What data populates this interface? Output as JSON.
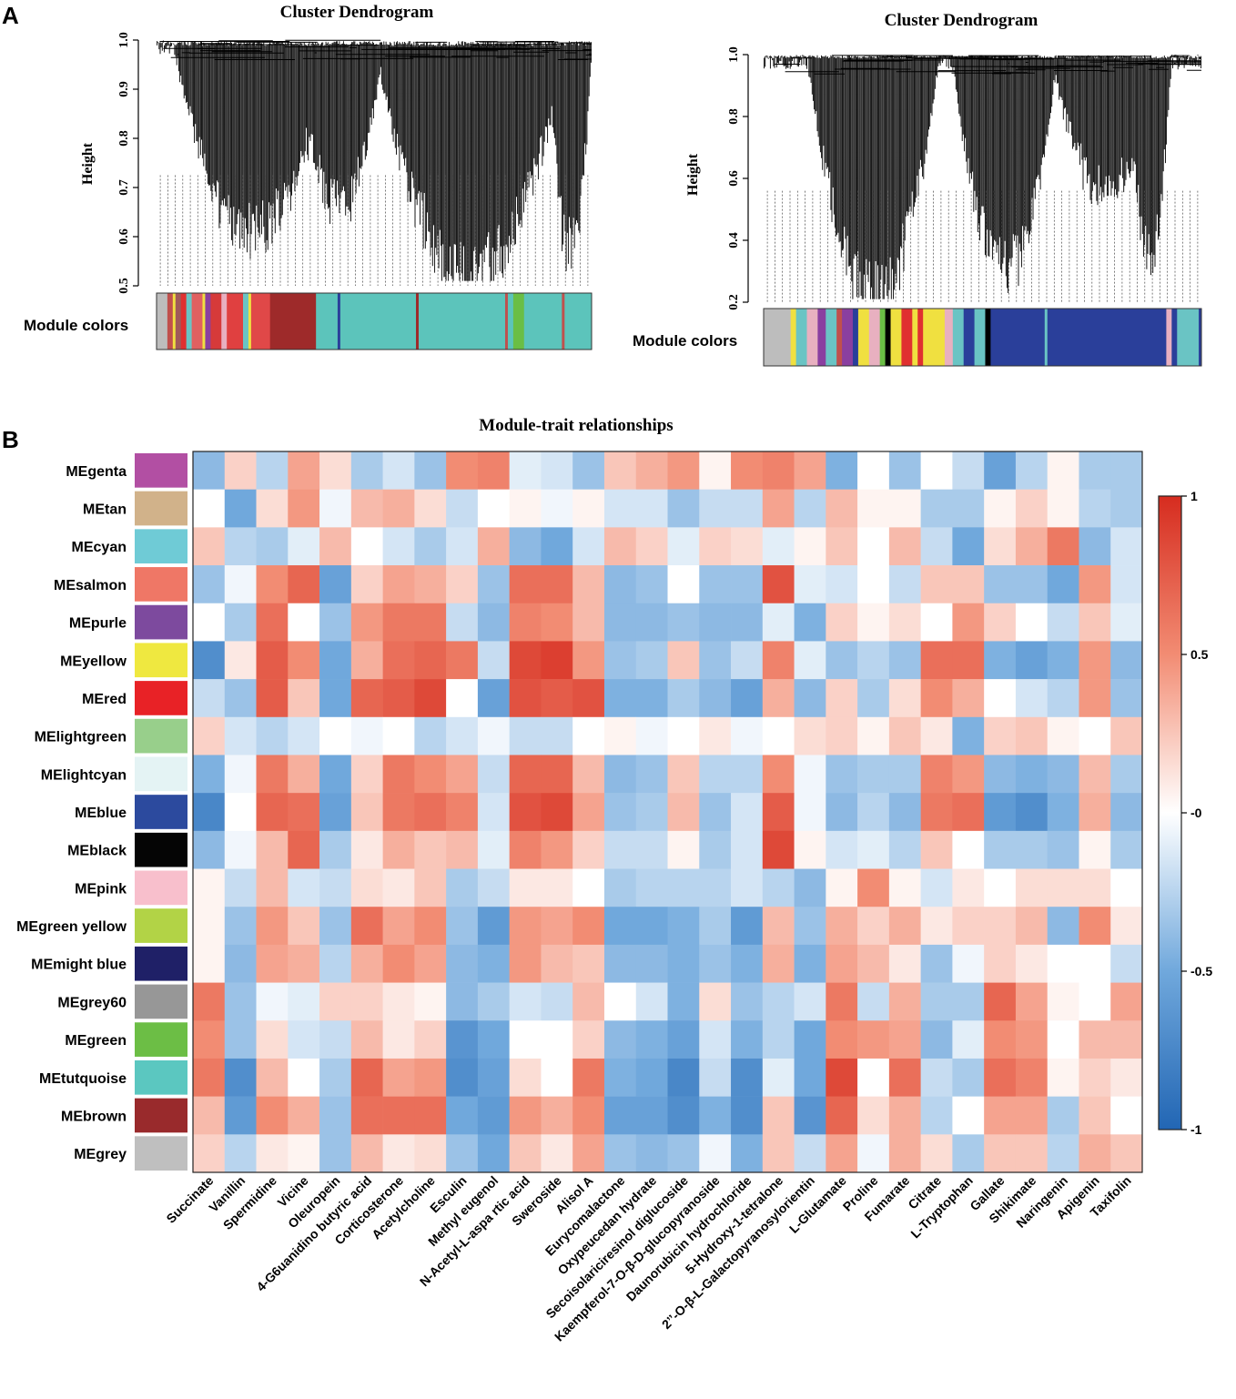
{
  "panels": {
    "a_label": "A",
    "b_label": "B"
  },
  "chart_data": [
    {
      "type": "dendrogram",
      "panel": "A-left",
      "title": "Cluster Dendrogram",
      "ylabel": "Height",
      "ylim": [
        0.5,
        1.0
      ],
      "yticks": [
        "0.5",
        "0.6",
        "0.7",
        "0.8",
        "0.9",
        "1.0"
      ],
      "color_bar_label": "Module colors",
      "color_bar": [
        {
          "color": "#bdbdbd",
          "frac": 0.02
        },
        {
          "color": "#c0504d",
          "frac": 0.01
        },
        {
          "color": "#f0e040",
          "frac": 0.005
        },
        {
          "color": "#a05a5a",
          "frac": 0.01
        },
        {
          "color": "#e03030",
          "frac": 0.01
        },
        {
          "color": "#6ac4c4",
          "frac": 0.01
        },
        {
          "color": "#e06060",
          "frac": 0.02
        },
        {
          "color": "#f0e040",
          "frac": 0.005
        },
        {
          "color": "#8a3fa0",
          "frac": 0.01
        },
        {
          "color": "#d63a3a",
          "frac": 0.02
        },
        {
          "color": "#e8b0c0",
          "frac": 0.01
        },
        {
          "color": "#e04040",
          "frac": 0.03
        },
        {
          "color": "#6ac4c4",
          "frac": 0.01
        },
        {
          "color": "#f0e040",
          "frac": 0.005
        },
        {
          "color": "#e04848",
          "frac": 0.035
        },
        {
          "color": "#9e2a2a",
          "frac": 0.085
        },
        {
          "color": "#5cc4bb",
          "frac": 0.04
        },
        {
          "color": "#2a3f9a",
          "frac": 0.005
        },
        {
          "color": "#5cc4bb",
          "frac": 0.14
        },
        {
          "color": "#9e2a2a",
          "frac": 0.005
        },
        {
          "color": "#5cc4bb",
          "frac": 0.16
        },
        {
          "color": "#c0504d",
          "frac": 0.005
        },
        {
          "color": "#5cc4bb",
          "frac": 0.01
        },
        {
          "color": "#6abe45",
          "frac": 0.02
        },
        {
          "color": "#5cc4bb",
          "frac": 0.07
        },
        {
          "color": "#c0504d",
          "frac": 0.005
        },
        {
          "color": "#5cc4bb",
          "frac": 0.05
        }
      ]
    },
    {
      "type": "dendrogram",
      "panel": "A-right",
      "title": "Cluster Dendrogram",
      "ylabel": "Height",
      "ylim": [
        0.2,
        1.0
      ],
      "yticks": [
        "0.2",
        "0.4",
        "0.6",
        "0.8",
        "1.0"
      ],
      "color_bar_label": "Module colors",
      "color_bar": [
        {
          "color": "#bdbdbd",
          "frac": 0.05
        },
        {
          "color": "#f0e040",
          "frac": 0.01
        },
        {
          "color": "#6ac4c4",
          "frac": 0.02
        },
        {
          "color": "#e8b0c0",
          "frac": 0.02
        },
        {
          "color": "#8a3fa0",
          "frac": 0.015
        },
        {
          "color": "#6ac4c4",
          "frac": 0.02
        },
        {
          "color": "#c0504d",
          "frac": 0.01
        },
        {
          "color": "#8a3fa0",
          "frac": 0.02
        },
        {
          "color": "#2a3f9a",
          "frac": 0.01
        },
        {
          "color": "#f0e040",
          "frac": 0.02
        },
        {
          "color": "#e8b0c0",
          "frac": 0.02
        },
        {
          "color": "#6abe45",
          "frac": 0.01
        },
        {
          "color": "#000000",
          "frac": 0.01
        },
        {
          "color": "#f0e040",
          "frac": 0.02
        },
        {
          "color": "#e03030",
          "frac": 0.02
        },
        {
          "color": "#f0e040",
          "frac": 0.01
        },
        {
          "color": "#e03030",
          "frac": 0.01
        },
        {
          "color": "#f0e040",
          "frac": 0.04
        },
        {
          "color": "#e8b0c0",
          "frac": 0.015
        },
        {
          "color": "#6ac4c4",
          "frac": 0.02
        },
        {
          "color": "#2a3f9a",
          "frac": 0.02
        },
        {
          "color": "#6ac4c4",
          "frac": 0.02
        },
        {
          "color": "#000000",
          "frac": 0.01
        },
        {
          "color": "#2a3f9a",
          "frac": 0.1
        },
        {
          "color": "#6ac4c4",
          "frac": 0.005
        },
        {
          "color": "#2a3f9a",
          "frac": 0.22
        },
        {
          "color": "#e8b0c0",
          "frac": 0.01
        },
        {
          "color": "#2a3f9a",
          "frac": 0.01
        },
        {
          "color": "#6ac4c4",
          "frac": 0.04
        },
        {
          "color": "#2a3f9a",
          "frac": 0.005
        }
      ]
    },
    {
      "type": "heatmap",
      "panel": "B",
      "title": "Module-trait relationships",
      "rows": [
        "MEgenta",
        "MEtan",
        "MEcyan",
        "MEsalmon",
        "MEpurle",
        "MEyellow",
        "MEred",
        "MElightgreen",
        "MElightcyan",
        "MEblue",
        "MEblack",
        "MEpink",
        "MEgreen yellow",
        "MEmight blue",
        "MEgrey60",
        "MEgreen",
        "MEtutquoise",
        "MEbrown",
        "MEgrey"
      ],
      "row_colors": [
        "#b24fa3",
        "#d1b28a",
        "#6fcbd6",
        "#ef7766",
        "#7d4a9e",
        "#efe840",
        "#e82226",
        "#98cf8b",
        "#e4f3f4",
        "#2c4a9e",
        "#050505",
        "#f8bfcc",
        "#b2d346",
        "#1f2067",
        "#979797",
        "#6cbe45",
        "#5bc7c0",
        "#992a2c",
        "#bfbfbf"
      ],
      "columns": [
        "Succinate",
        "Vanillin",
        "Spermidine",
        "Vicine",
        "Oleuropein",
        "4-G6uanidino butyric acid",
        "Corticosterone",
        "Acetylcholine",
        "Esculin",
        "Methyl eugenol",
        "N-Acetyl-L-aspa rtic acid",
        "Sweroside",
        "Alisol A",
        "Eurycomalactone",
        "Oxypeucedan hydrate",
        "Secoisolariciresinol diglucoside",
        "Kaempferol-7-O-β-D-glucopyranoside",
        "Daunorubicin hydrochloride",
        "5-Hydroxy-1-tetralone",
        "2’’-O-β-L-Galactopyranosylorientin",
        "L-Glutamate",
        "Proline",
        "Fumarate",
        "Citrate",
        "L-Tryptophan",
        "Gallate",
        "Shikimate",
        "Naringenin",
        "Apigenin",
        "Taxifolin"
      ],
      "values": [
        [
          -0.4,
          0.2,
          -0.25,
          0.4,
          0.15,
          -0.3,
          -0.15,
          -0.35,
          0.5,
          0.55,
          -0.1,
          -0.15,
          -0.35,
          0.25,
          0.35,
          0.45,
          0.05,
          0.5,
          0.55,
          0.4,
          -0.45,
          0.0,
          -0.35,
          0.0,
          -0.2,
          -0.55,
          -0.25,
          0.05,
          -0.3,
          -0.3
        ],
        [
          0.0,
          -0.5,
          0.15,
          0.45,
          -0.05,
          0.3,
          0.35,
          0.15,
          -0.2,
          0.0,
          0.05,
          -0.05,
          0.05,
          -0.15,
          -0.15,
          -0.35,
          -0.2,
          -0.2,
          0.4,
          -0.25,
          0.3,
          0.05,
          0.05,
          -0.3,
          -0.3,
          0.05,
          0.2,
          0.05,
          -0.25,
          -0.3
        ],
        [
          0.25,
          -0.25,
          -0.3,
          -0.1,
          0.3,
          0.0,
          -0.15,
          -0.3,
          -0.15,
          0.35,
          -0.4,
          -0.5,
          -0.15,
          0.3,
          0.2,
          -0.1,
          0.2,
          0.15,
          -0.1,
          0.05,
          0.25,
          0.0,
          0.3,
          -0.2,
          -0.5,
          0.15,
          0.35,
          0.6,
          -0.4,
          -0.15
        ],
        [
          -0.35,
          -0.05,
          0.5,
          0.7,
          -0.55,
          0.2,
          0.4,
          0.35,
          0.2,
          -0.35,
          0.65,
          0.65,
          0.3,
          -0.4,
          -0.35,
          0.0,
          -0.35,
          -0.35,
          0.8,
          -0.1,
          -0.15,
          0.0,
          -0.2,
          0.25,
          0.25,
          -0.35,
          -0.35,
          -0.5,
          0.45,
          -0.15
        ],
        [
          0.0,
          -0.3,
          0.65,
          0.0,
          -0.35,
          0.45,
          0.6,
          0.6,
          -0.2,
          -0.4,
          0.55,
          0.5,
          0.3,
          -0.4,
          -0.4,
          -0.35,
          -0.4,
          -0.4,
          -0.1,
          -0.45,
          0.2,
          0.05,
          0.15,
          0.0,
          0.45,
          0.2,
          0.0,
          -0.2,
          0.25,
          -0.1
        ],
        [
          -0.7,
          0.1,
          0.75,
          0.5,
          -0.5,
          0.35,
          0.65,
          0.7,
          0.6,
          -0.2,
          0.85,
          0.9,
          0.45,
          -0.35,
          -0.3,
          0.25,
          -0.35,
          -0.2,
          0.55,
          -0.1,
          -0.35,
          -0.25,
          -0.35,
          0.65,
          0.65,
          -0.45,
          -0.55,
          -0.45,
          0.45,
          -0.4
        ],
        [
          -0.2,
          -0.35,
          0.75,
          0.25,
          -0.5,
          0.7,
          0.75,
          0.85,
          0.0,
          -0.55,
          0.8,
          0.75,
          0.8,
          -0.45,
          -0.45,
          -0.3,
          -0.4,
          -0.55,
          0.35,
          -0.4,
          0.2,
          -0.3,
          0.15,
          0.5,
          0.35,
          0.0,
          -0.15,
          -0.25,
          0.45,
          -0.35
        ],
        [
          0.2,
          -0.15,
          -0.25,
          -0.15,
          0.0,
          -0.05,
          0.0,
          -0.25,
          -0.15,
          -0.05,
          -0.2,
          -0.2,
          0.0,
          0.05,
          -0.05,
          0.0,
          0.1,
          -0.05,
          0.0,
          0.15,
          0.2,
          0.05,
          0.25,
          0.1,
          -0.45,
          0.2,
          0.25,
          0.05,
          0.0,
          0.25
        ],
        [
          -0.45,
          -0.05,
          0.6,
          0.35,
          -0.5,
          0.2,
          0.6,
          0.5,
          0.4,
          -0.2,
          0.7,
          0.7,
          0.3,
          -0.4,
          -0.35,
          0.25,
          -0.25,
          -0.25,
          0.5,
          -0.05,
          -0.35,
          -0.3,
          -0.3,
          0.55,
          0.45,
          -0.4,
          -0.45,
          -0.4,
          0.3,
          -0.3
        ],
        [
          -0.75,
          0.0,
          0.7,
          0.65,
          -0.55,
          0.25,
          0.6,
          0.65,
          0.55,
          -0.15,
          0.8,
          0.85,
          0.4,
          -0.35,
          -0.3,
          0.3,
          -0.35,
          -0.15,
          0.75,
          -0.05,
          -0.4,
          -0.25,
          -0.4,
          0.6,
          0.65,
          -0.6,
          -0.7,
          -0.45,
          0.35,
          -0.4
        ],
        [
          -0.4,
          -0.05,
          0.3,
          0.7,
          -0.3,
          0.1,
          0.35,
          0.25,
          0.3,
          -0.1,
          0.55,
          0.45,
          0.2,
          -0.2,
          -0.2,
          0.05,
          -0.3,
          -0.15,
          0.85,
          0.05,
          -0.15,
          -0.1,
          -0.25,
          0.25,
          0.0,
          -0.3,
          -0.3,
          -0.35,
          0.05,
          -0.3
        ],
        [
          0.05,
          -0.2,
          0.3,
          -0.15,
          -0.2,
          0.15,
          0.1,
          0.25,
          -0.3,
          -0.2,
          0.1,
          0.1,
          0.0,
          -0.3,
          -0.25,
          -0.25,
          -0.25,
          -0.15,
          -0.25,
          -0.4,
          0.05,
          0.5,
          0.05,
          -0.15,
          0.1,
          0.0,
          0.15,
          0.15,
          0.15,
          0.0
        ],
        [
          0.05,
          -0.35,
          0.45,
          0.25,
          -0.35,
          0.65,
          0.4,
          0.5,
          -0.35,
          -0.6,
          0.45,
          0.4,
          0.5,
          -0.5,
          -0.5,
          -0.45,
          -0.3,
          -0.6,
          0.3,
          -0.35,
          0.35,
          0.2,
          0.35,
          0.1,
          0.2,
          0.2,
          0.3,
          -0.4,
          0.5,
          0.1
        ],
        [
          0.05,
          -0.4,
          0.4,
          0.35,
          -0.25,
          0.35,
          0.5,
          0.4,
          -0.4,
          -0.45,
          0.45,
          0.3,
          0.25,
          -0.4,
          -0.4,
          -0.45,
          -0.35,
          -0.45,
          0.35,
          -0.45,
          0.4,
          0.3,
          0.1,
          -0.35,
          -0.05,
          0.2,
          0.1,
          0.0,
          0.0,
          -0.2
        ],
        [
          0.6,
          -0.35,
          -0.05,
          -0.1,
          0.2,
          0.2,
          0.1,
          0.05,
          -0.4,
          -0.3,
          -0.15,
          -0.2,
          0.3,
          0.0,
          -0.15,
          -0.45,
          0.15,
          -0.35,
          -0.25,
          -0.15,
          0.6,
          -0.2,
          0.35,
          -0.3,
          -0.3,
          0.7,
          0.4,
          0.05,
          0.0,
          0.4
        ],
        [
          0.5,
          -0.35,
          0.15,
          -0.15,
          -0.2,
          0.3,
          0.1,
          0.2,
          -0.65,
          -0.5,
          0.0,
          0.0,
          0.2,
          -0.4,
          -0.45,
          -0.55,
          -0.15,
          -0.45,
          -0.25,
          -0.5,
          0.5,
          0.45,
          0.4,
          -0.4,
          -0.1,
          0.5,
          0.45,
          0.0,
          0.3,
          0.3
        ],
        [
          0.6,
          -0.7,
          0.3,
          0.0,
          -0.3,
          0.7,
          0.4,
          0.45,
          -0.7,
          -0.55,
          0.15,
          0.0,
          0.6,
          -0.45,
          -0.5,
          -0.75,
          -0.2,
          -0.7,
          -0.1,
          -0.5,
          0.85,
          0.0,
          0.65,
          -0.2,
          -0.3,
          0.65,
          0.55,
          0.05,
          0.2,
          0.1
        ],
        [
          0.3,
          -0.6,
          0.5,
          0.35,
          -0.35,
          0.65,
          0.65,
          0.65,
          -0.5,
          -0.6,
          0.45,
          0.35,
          0.5,
          -0.55,
          -0.55,
          -0.7,
          -0.45,
          -0.7,
          0.25,
          -0.65,
          0.7,
          0.15,
          0.35,
          -0.25,
          0.0,
          0.4,
          0.4,
          -0.3,
          0.25,
          0.0
        ],
        [
          0.2,
          -0.25,
          0.1,
          0.05,
          -0.35,
          0.3,
          0.1,
          0.15,
          -0.35,
          -0.5,
          0.25,
          0.1,
          0.4,
          -0.35,
          -0.4,
          -0.35,
          -0.05,
          -0.45,
          0.25,
          -0.2,
          0.4,
          -0.05,
          0.35,
          0.15,
          -0.3,
          0.25,
          0.25,
          -0.25,
          0.35,
          0.25
        ]
      ],
      "zlim": [
        -1,
        1
      ],
      "colorbar_ticks": [
        "1",
        "0.5",
        "-0",
        "-0.5",
        "-1"
      ],
      "colorbar_tick_values": [
        1,
        0.5,
        0,
        -0.5,
        -1
      ]
    }
  ]
}
